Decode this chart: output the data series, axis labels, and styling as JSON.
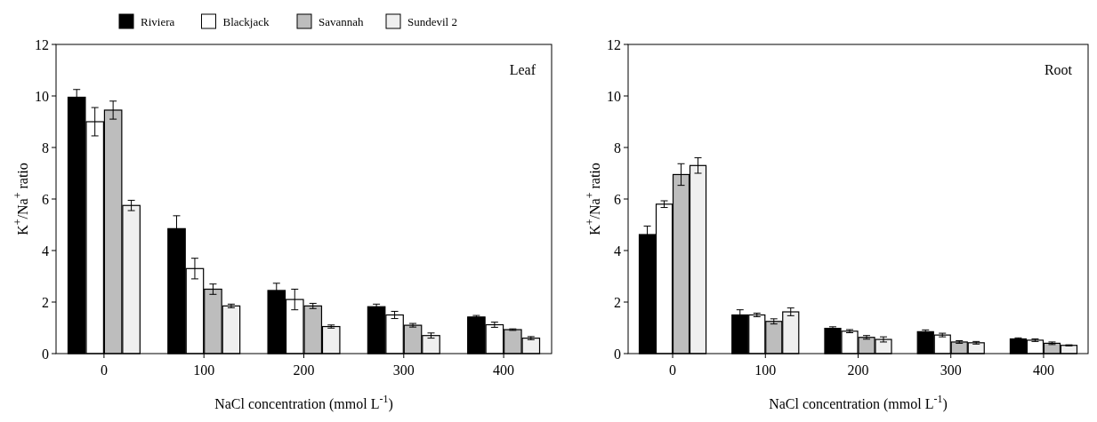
{
  "chart_data": [
    {
      "type": "bar",
      "categories": [
        "0",
        "100",
        "200",
        "300",
        "400"
      ],
      "xlabel": "NaCl concentration (mmol L$^{-1}$)",
      "ylabel": "K$^{+}$/Na$^{+}$ ratio",
      "ylim": [
        0,
        12
      ],
      "yticks": [
        0,
        2,
        4,
        6,
        8,
        10,
        12
      ],
      "annotations": [
        "Leaf"
      ],
      "legend": "top",
      "series": [
        {
          "name": "Riviera",
          "color": "#000000",
          "values": [
            9.95,
            4.85,
            2.45,
            1.82,
            1.42
          ],
          "errors": [
            0.3,
            0.5,
            0.28,
            0.1,
            0.06
          ]
        },
        {
          "name": "Blackjack",
          "color": "#ffffff",
          "values": [
            9.0,
            3.3,
            2.1,
            1.5,
            1.12
          ],
          "errors": [
            0.55,
            0.4,
            0.4,
            0.14,
            0.1
          ]
        },
        {
          "name": "Savannah",
          "color": "#bdbdbd",
          "values": [
            9.45,
            2.5,
            1.85,
            1.1,
            0.93
          ],
          "errors": [
            0.35,
            0.2,
            0.1,
            0.07,
            0.03
          ]
        },
        {
          "name": "Sundevil 2",
          "color": "#efefef",
          "values": [
            5.75,
            1.85,
            1.05,
            0.7,
            0.6
          ],
          "errors": [
            0.2,
            0.07,
            0.06,
            0.1,
            0.06
          ]
        }
      ]
    },
    {
      "type": "bar",
      "categories": [
        "0",
        "100",
        "200",
        "300",
        "400"
      ],
      "xlabel": "NaCl concentration (mmol L$^{-1}$)",
      "ylabel": "K$^{+}$/Na$^{+}$ ratio",
      "ylim": [
        0,
        12
      ],
      "yticks": [
        0,
        2,
        4,
        6,
        8,
        10,
        12
      ],
      "annotations": [
        "Root"
      ],
      "series": [
        {
          "color": "#000000",
          "values": [
            4.62,
            1.5,
            0.98,
            0.85,
            0.57
          ],
          "errors": [
            0.33,
            0.2,
            0.06,
            0.07,
            0.04
          ]
        },
        {
          "color": "#ffffff",
          "values": [
            5.8,
            1.5,
            0.87,
            0.72,
            0.52
          ],
          "errors": [
            0.13,
            0.07,
            0.06,
            0.07,
            0.05
          ]
        },
        {
          "color": "#bdbdbd",
          "values": [
            6.95,
            1.25,
            0.63,
            0.45,
            0.4
          ],
          "errors": [
            0.42,
            0.1,
            0.07,
            0.05,
            0.05
          ]
        },
        {
          "color": "#efefef",
          "values": [
            7.3,
            1.62,
            0.55,
            0.42,
            0.32
          ],
          "errors": [
            0.3,
            0.15,
            0.1,
            0.05,
            0.02
          ]
        }
      ]
    }
  ]
}
